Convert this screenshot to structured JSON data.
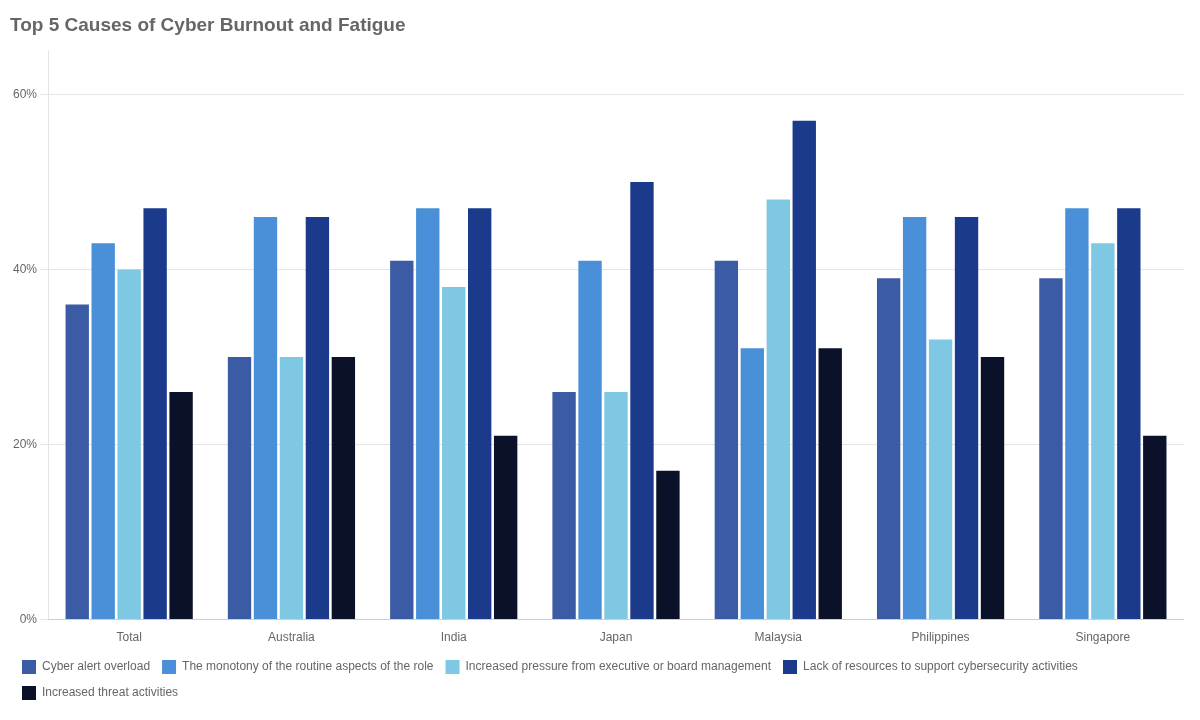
{
  "chart_data": {
    "type": "bar",
    "title": "Top 5 Causes of Cyber Burnout and Fatigue",
    "categories": [
      "Total",
      "Australia",
      "India",
      "Japan",
      "Malaysia",
      "Philippines",
      "Singapore"
    ],
    "series": [
      {
        "name": "Cyber alert overload",
        "color": "#3B5BA5",
        "values": [
          36,
          30,
          41,
          26,
          41,
          39,
          39
        ]
      },
      {
        "name": "The monotony of the routine aspects of the role",
        "color": "#4A90D9",
        "values": [
          43,
          46,
          47,
          41,
          31,
          46,
          47
        ]
      },
      {
        "name": "Increased pressure from executive or board management",
        "color": "#7EC8E3",
        "values": [
          40,
          30,
          38,
          26,
          48,
          32,
          43
        ]
      },
      {
        "name": "Lack of resources to support cybersecurity activities",
        "color": "#1B3A8C",
        "values": [
          47,
          46,
          47,
          50,
          57,
          46,
          47
        ]
      },
      {
        "name": "Increased threat activities",
        "color": "#0A1128",
        "values": [
          26,
          30,
          21,
          17,
          31,
          30,
          21
        ]
      }
    ],
    "ylim": [
      0,
      65
    ],
    "yticks": [
      {
        "value": 0,
        "label": "0%"
      },
      {
        "value": 20,
        "label": "20%"
      },
      {
        "value": 40,
        "label": "40%"
      },
      {
        "value": 60,
        "label": "60%"
      }
    ],
    "grid": true,
    "legend": "bottom"
  }
}
